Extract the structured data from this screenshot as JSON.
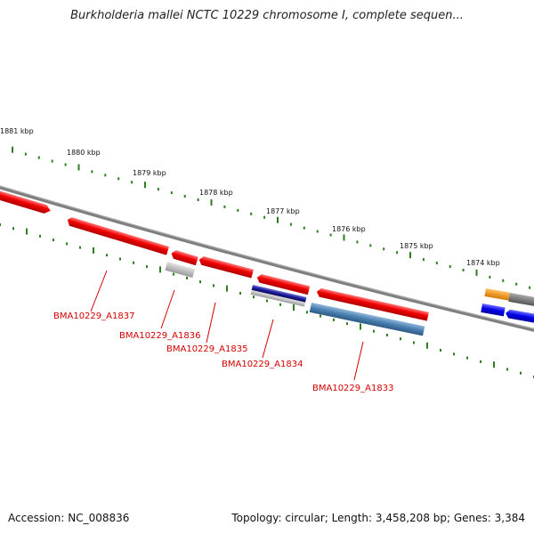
{
  "title": "Burkholderia mallei NCTC 10229 chromosome I, complete sequen...",
  "footer": {
    "accession": "Accession: NC_008836",
    "topology": "Topology: circular; Length: 3,458,208 bp; Genes: 3,384"
  },
  "colors": {
    "backbone": "#808080",
    "tick": "#2e7d1e",
    "gene_red": "#e80000",
    "gene_gray": "#b3b3b3",
    "gene_navy": "#1a1a8c",
    "gene_steelblue": "#4a7fb0",
    "gene_orange": "#f08c00",
    "gene_darkgray": "#7a7a7a",
    "gene_blue": "#0000e0",
    "label": "#d40000"
  },
  "kbp_labels": [
    "1881 kbp",
    "1880 kbp",
    "1879 kbp",
    "1878 kbp",
    "1877 kbp",
    "1876 kbp",
    "1875 kbp",
    "1874 kbp"
  ],
  "genes": [
    {
      "label": "BMA10229_A1837",
      "color": "gene_red",
      "strand": "+"
    },
    {
      "label": "BMA10229_A1836",
      "color": "gene_gray",
      "strand": "-"
    },
    {
      "label": "BMA10229_A1835",
      "color": "gene_red",
      "strand": "+"
    },
    {
      "label": "BMA10229_A1834",
      "color": "gene_navy",
      "strand": "-"
    },
    {
      "label": "BMA10229_A1833",
      "color": "gene_steelblue",
      "strand": "-"
    }
  ]
}
